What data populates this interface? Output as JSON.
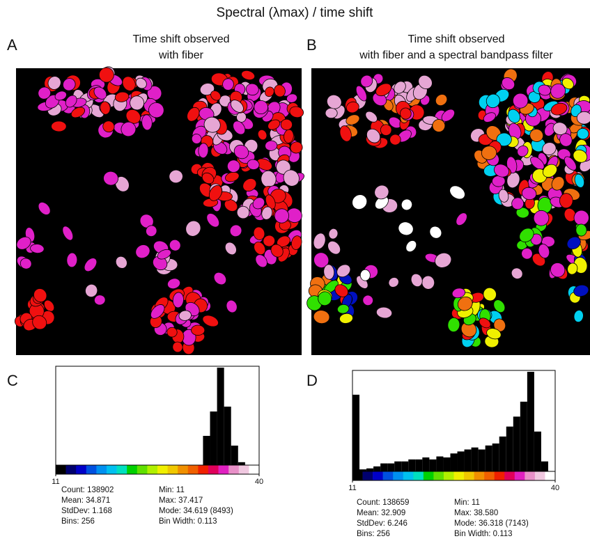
{
  "title": "Spectral (λmax) / time shift",
  "panels": [
    {
      "letter": "A",
      "caption": [
        "Time shift observed",
        "with fiber"
      ]
    },
    {
      "letter": "B",
      "caption": [
        "Time shift observed",
        "with fiber and a spectral bandpass filter"
      ]
    },
    {
      "letter": "C"
    },
    {
      "letter": "D"
    }
  ],
  "chart_data": [
    {
      "type": "histogram",
      "bins": [
        11,
        12,
        13,
        14,
        15,
        16,
        17,
        18,
        19,
        20,
        21,
        22,
        23,
        24,
        25,
        26,
        27,
        28,
        29,
        30,
        31,
        32,
        33,
        34,
        35,
        36,
        37,
        38,
        39,
        40
      ],
      "counts": [
        0,
        0,
        0,
        0,
        0,
        0,
        0,
        0,
        0,
        0,
        0,
        0,
        0,
        0,
        0,
        0,
        0,
        0,
        0,
        0,
        0,
        30,
        55,
        100,
        60,
        20,
        3,
        0,
        0
      ],
      "ylim": [
        0,
        100
      ],
      "xlim": [
        11,
        40
      ],
      "xticks": [
        11,
        40
      ],
      "color": "#000000",
      "colorbar": [
        "#000000",
        "#00006e",
        "#0000c8",
        "#0050e0",
        "#0090f0",
        "#00c0f0",
        "#00e0c0",
        "#00d000",
        "#60e000",
        "#b0f000",
        "#f0f000",
        "#f0c800",
        "#f09000",
        "#f06000",
        "#f02000",
        "#e0005a",
        "#e020c0",
        "#e890c8",
        "#f0c8e0",
        "#ffffff"
      ],
      "stats": [
        [
          "Count: 138902",
          "Mean: 34.871",
          "StdDev: 1.168",
          "Bins: 256"
        ],
        [
          "Min: 11",
          "Max: 37.417",
          "Mode: 34.619 (8493)",
          "Bin Width: 0.113"
        ]
      ]
    },
    {
      "type": "histogram",
      "bins": [
        11,
        12,
        13,
        14,
        15,
        16,
        17,
        18,
        19,
        20,
        21,
        22,
        23,
        24,
        25,
        26,
        27,
        28,
        29,
        30,
        31,
        32,
        33,
        34,
        35,
        36,
        37,
        38,
        39,
        40
      ],
      "counts": [
        77,
        2,
        3,
        5,
        8,
        8,
        10,
        10,
        12,
        12,
        14,
        12,
        15,
        14,
        18,
        20,
        22,
        24,
        22,
        26,
        28,
        35,
        45,
        55,
        70,
        100,
        40,
        10,
        0
      ],
      "ylim": [
        0,
        100
      ],
      "xlim": [
        11,
        40
      ],
      "xticks": [
        11,
        40
      ],
      "color": "#000000",
      "colorbar": [
        "#000000",
        "#00006e",
        "#0000c8",
        "#0050e0",
        "#0090f0",
        "#00c0f0",
        "#00e0c0",
        "#00d000",
        "#60e000",
        "#b0f000",
        "#f0f000",
        "#f0c800",
        "#f09000",
        "#f06000",
        "#f02000",
        "#e0005a",
        "#e020c0",
        "#e890c8",
        "#f0c8e0",
        "#ffffff"
      ],
      "stats": [
        [
          "Count: 138659",
          "Mean: 32.909",
          "StdDev: 6.246",
          "Bins: 256"
        ],
        [
          "Min: 11",
          "Max: 38.580",
          "Mode: 36.318 (7143)",
          "Bin Width: 0.113"
        ]
      ]
    }
  ]
}
